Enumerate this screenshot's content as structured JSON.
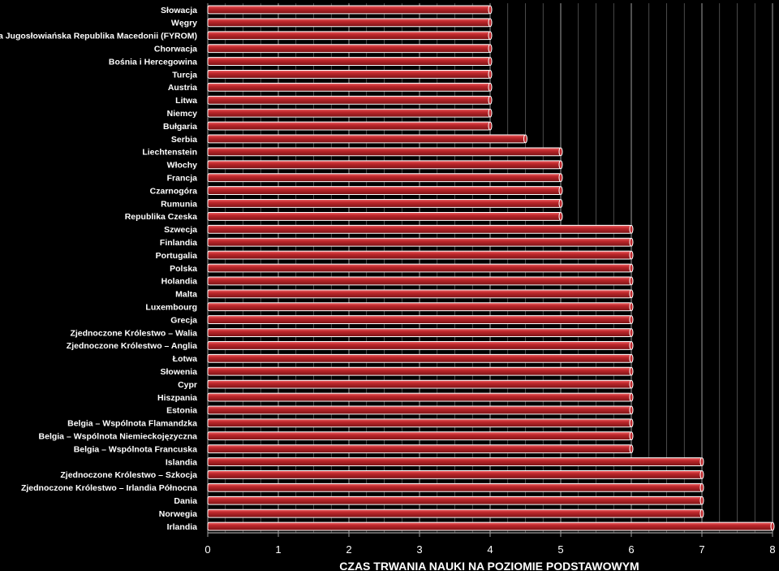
{
  "chart_data": {
    "type": "bar",
    "orientation": "horizontal",
    "categories": [
      "Słowacja",
      "Węgry",
      "Była Jugosłowiańska Republika Macedonii (FYROM)",
      "Chorwacja",
      "Bośnia i Hercegowina",
      "Turcja",
      "Austria",
      "Litwa",
      "Niemcy",
      "Bułgaria",
      "Serbia",
      "Liechtenstein",
      "Włochy",
      "Francja",
      "Czarnogóra",
      "Rumunia",
      "Republika Czeska",
      "Szwecja",
      "Finlandia",
      "Portugalia",
      "Polska",
      "Holandia",
      "Malta",
      "Luxembourg",
      "Grecja",
      "Zjednoczone Królestwo – Walia",
      "Zjednoczone Królestwo – Anglia",
      "Łotwa",
      "Słowenia",
      "Cypr",
      "Hiszpania",
      "Estonia",
      "Belgia – Wspólnota Flamandzka",
      "Belgia – Wspólnota Niemieckojęzyczna",
      "Belgia – Wspólnota Francuska",
      "Islandia",
      "Zjednoczone Królestwo – Szkocja",
      "Zjednoczone Królestwo – Irlandia Północna",
      "Dania",
      "Norwegia",
      "Irlandia"
    ],
    "values": [
      4,
      4,
      4,
      4,
      4,
      4,
      4,
      4,
      4,
      4,
      4.5,
      5,
      5,
      5,
      5,
      5,
      5,
      6,
      6,
      6,
      6,
      6,
      6,
      6,
      6,
      6,
      6,
      6,
      6,
      6,
      6,
      6,
      6,
      6,
      6,
      7,
      7,
      7,
      7,
      7,
      8
    ],
    "xlim": [
      0,
      8
    ],
    "xticks": [
      "0",
      "1",
      "2",
      "3",
      "4",
      "5",
      "6",
      "7",
      "8"
    ],
    "xlabel": "CZAS TRWANIA NAUKI NA POZIOMIE PODSTAWOWYM",
    "grid": true,
    "colors": {
      "background": "#000000",
      "bar_fill": "#c0282c",
      "bar_light": "#f0686a",
      "bar_dark": "#7a1215",
      "bar_outline": "#ffffff",
      "grid_major": "#a0a0a0",
      "grid_minor": "#6a6a6a",
      "text": "#ffffff"
    }
  }
}
